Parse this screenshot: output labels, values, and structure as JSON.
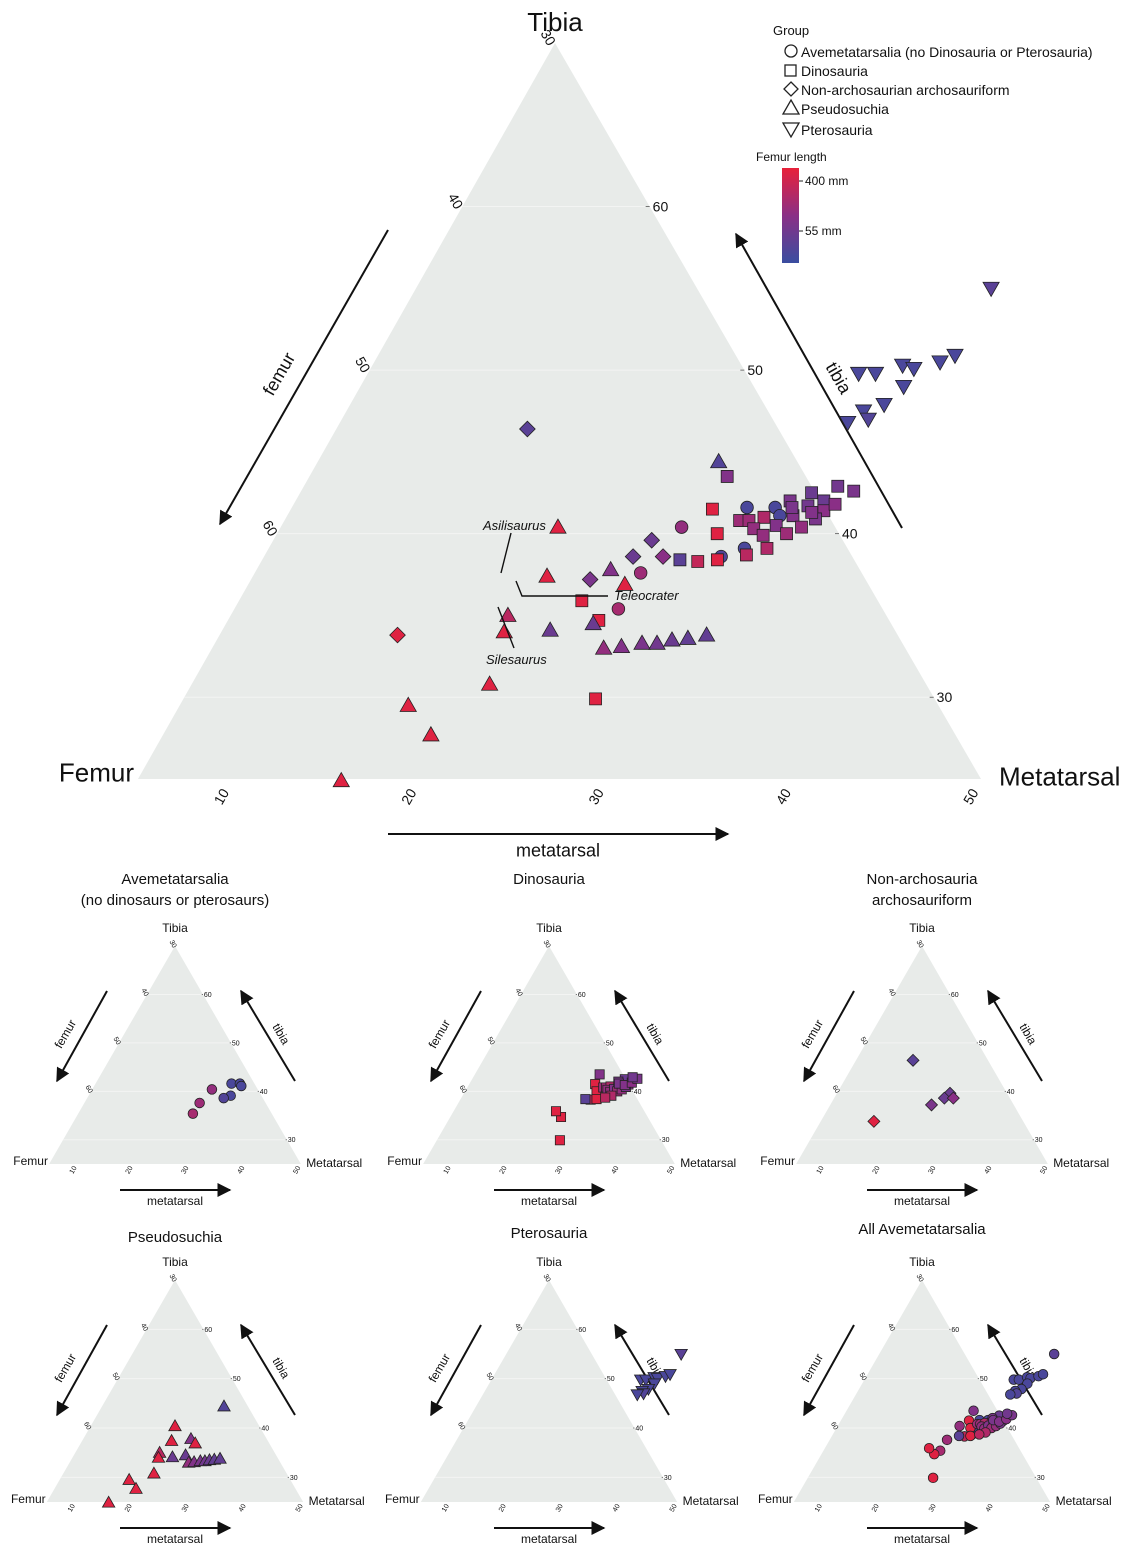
{
  "legend": {
    "group_title": "Group",
    "groups": [
      {
        "label": "Avemetatarsalia (no Dinosauria or Pterosauria)",
        "shape": "circle"
      },
      {
        "label": "Dinosauria",
        "shape": "square"
      },
      {
        "label": "Non-archosaurian archosauriform",
        "shape": "diamond"
      },
      {
        "label": "Pseudosuchia",
        "shape": "triangle-up"
      },
      {
        "label": "Pterosauria",
        "shape": "triangle-down"
      }
    ],
    "color_title": "Femur length",
    "color_max_label": "400 mm",
    "color_min_label": "55 mm",
    "colors": {
      "high": "#e8213a",
      "mid": "#8a2f86",
      "low": "#3a4da0"
    }
  },
  "chart_data": {
    "type": "scatter",
    "subtype": "ternary",
    "vertex_labels": {
      "top": "Tibia",
      "left": "Femur",
      "right": "Metatarsal"
    },
    "axis_labels": {
      "femur": "femur",
      "tibia": "tibia",
      "metatarsal": "metatarsal"
    },
    "metatarsal_ticks": [
      10,
      20,
      30,
      40,
      50
    ],
    "tibia_ticks": [
      30,
      40,
      50,
      60
    ],
    "femur_ticks": [
      30,
      40,
      50,
      60
    ],
    "axis_ranges": {
      "metatarsal": [
        5,
        50
      ],
      "tibia": [
        25,
        70
      ],
      "femur": [
        30,
        75
      ]
    },
    "annotations": [
      "Asilisaurus",
      "Teleocrater",
      "Silesaurus"
    ],
    "points": [
      {
        "g": "avemeta",
        "m": 26.4,
        "t": 40.4,
        "fl": 0.55
      },
      {
        "g": "avemeta",
        "m": 29.3,
        "t": 41.6,
        "fl": 0.1
      },
      {
        "g": "avemeta",
        "m": 30.8,
        "t": 41.6,
        "fl": 0.1
      },
      {
        "g": "avemeta",
        "m": 31.3,
        "t": 41.1,
        "fl": 0.1
      },
      {
        "g": "avemeta",
        "m": 30.4,
        "t": 39.1,
        "fl": 0.1
      },
      {
        "g": "avemeta",
        "m": 29.4,
        "t": 38.6,
        "fl": 0.15
      },
      {
        "g": "avemeta",
        "m": 25.6,
        "t": 37.6,
        "fl": 0.6
      },
      {
        "g": "avemeta",
        "m": 25.5,
        "t": 35.4,
        "fl": 0.65
      },
      {
        "g": "dino",
        "m": 27.3,
        "t": 43.5,
        "fl": 0.45
      },
      {
        "g": "dino",
        "m": 27.5,
        "t": 41.5,
        "fl": 0.95
      },
      {
        "g": "dino",
        "m": 28.3,
        "t": 38.3,
        "fl": 0.8
      },
      {
        "g": "dino",
        "m": 27.3,
        "t": 38.4,
        "fl": 0.2
      },
      {
        "g": "dino",
        "m": 28.5,
        "t": 40.0,
        "fl": 0.95
      },
      {
        "g": "dino",
        "m": 29.3,
        "t": 40.8,
        "fl": 0.6
      },
      {
        "g": "dino",
        "m": 29.8,
        "t": 40.8,
        "fl": 0.6
      },
      {
        "g": "dino",
        "m": 29.3,
        "t": 38.4,
        "fl": 0.95
      },
      {
        "g": "dino",
        "m": 30.5,
        "t": 41.0,
        "fl": 0.7
      },
      {
        "g": "dino",
        "m": 30.3,
        "t": 40.3,
        "fl": 0.55
      },
      {
        "g": "dino",
        "m": 31.0,
        "t": 39.9,
        "fl": 0.55
      },
      {
        "g": "dino",
        "m": 31.4,
        "t": 40.5,
        "fl": 0.45
      },
      {
        "g": "dino",
        "m": 32.0,
        "t": 41.1,
        "fl": 0.45
      },
      {
        "g": "dino",
        "m": 32.5,
        "t": 41.7,
        "fl": 0.35
      },
      {
        "g": "dino",
        "m": 33.2,
        "t": 42.0,
        "fl": 0.3
      },
      {
        "g": "dino",
        "m": 33.5,
        "t": 41.4,
        "fl": 0.5
      },
      {
        "g": "dino",
        "m": 32.2,
        "t": 40.0,
        "fl": 0.6
      },
      {
        "g": "dino",
        "m": 32.8,
        "t": 40.4,
        "fl": 0.55
      },
      {
        "g": "dino",
        "m": 33.3,
        "t": 40.9,
        "fl": 0.4
      },
      {
        "g": "dino",
        "m": 31.6,
        "t": 39.1,
        "fl": 0.7
      },
      {
        "g": "dino",
        "m": 30.7,
        "t": 38.7,
        "fl": 0.75
      },
      {
        "g": "dino",
        "m": 32.3,
        "t": 42.5,
        "fl": 0.3
      },
      {
        "g": "dino",
        "m": 31.4,
        "t": 42.0,
        "fl": 0.4
      },
      {
        "g": "dino",
        "m": 31.7,
        "t": 41.6,
        "fl": 0.4
      },
      {
        "g": "dino",
        "m": 32.9,
        "t": 41.3,
        "fl": 0.45
      },
      {
        "g": "dino",
        "m": 33.9,
        "t": 41.8,
        "fl": 0.5
      },
      {
        "g": "dino",
        "m": 34.5,
        "t": 42.6,
        "fl": 0.4
      },
      {
        "g": "dino",
        "m": 33.5,
        "t": 42.9,
        "fl": 0.35
      },
      {
        "g": "dino",
        "m": 24.8,
        "t": 34.7,
        "fl": 0.95
      },
      {
        "g": "dino",
        "m": 27.0,
        "t": 29.9,
        "fl": 0.95
      },
      {
        "g": "dino",
        "m": 23.3,
        "t": 35.9,
        "fl": 0.95
      },
      {
        "g": "nonarch",
        "m": 15.2,
        "t": 46.4,
        "fl": 0.2
      },
      {
        "g": "nonarch",
        "m": 14.5,
        "t": 33.8,
        "fl": 0.95
      },
      {
        "g": "nonarch",
        "m": 25.2,
        "t": 39.6,
        "fl": 0.3
      },
      {
        "g": "nonarch",
        "m": 24.7,
        "t": 38.6,
        "fl": 0.3
      },
      {
        "g": "nonarch",
        "m": 23.1,
        "t": 37.2,
        "fl": 0.4
      },
      {
        "g": "nonarch",
        "m": 26.3,
        "t": 38.6,
        "fl": 0.5
      },
      {
        "g": "pseudo",
        "m": 26.4,
        "t": 44.4,
        "fl": 0.15
      },
      {
        "g": "pseudo",
        "m": 19.8,
        "t": 40.4,
        "fl": 0.95
      },
      {
        "g": "pseudo",
        "m": 20.7,
        "t": 37.4,
        "fl": 0.95
      },
      {
        "g": "pseudo",
        "m": 19.8,
        "t": 35.0,
        "fl": 0.75
      },
      {
        "g": "pseudo",
        "m": 20.1,
        "t": 34.0,
        "fl": 0.95
      },
      {
        "g": "pseudo",
        "m": 20.9,
        "t": 30.8,
        "fl": 0.95
      },
      {
        "g": "pseudo",
        "m": 17.2,
        "t": 29.5,
        "fl": 0.95
      },
      {
        "g": "pseudo",
        "m": 19.3,
        "t": 27.7,
        "fl": 0.95
      },
      {
        "g": "pseudo",
        "m": 15.9,
        "t": 24.9,
        "fl": 0.95
      },
      {
        "g": "pseudo",
        "m": 22.5,
        "t": 34.1,
        "fl": 0.3
      },
      {
        "g": "pseudo",
        "m": 24.6,
        "t": 34.5,
        "fl": 0.3
      },
      {
        "g": "pseudo",
        "m": 23.9,
        "t": 37.8,
        "fl": 0.45
      },
      {
        "g": "pseudo",
        "m": 25.1,
        "t": 36.9,
        "fl": 0.95
      },
      {
        "g": "pseudo",
        "m": 25.9,
        "t": 33.0,
        "fl": 0.55
      },
      {
        "g": "pseudo",
        "m": 26.8,
        "t": 33.1,
        "fl": 0.45
      },
      {
        "g": "pseudo",
        "m": 27.8,
        "t": 33.3,
        "fl": 0.4
      },
      {
        "g": "pseudo",
        "m": 28.6,
        "t": 33.3,
        "fl": 0.35
      },
      {
        "g": "pseudo",
        "m": 29.3,
        "t": 33.5,
        "fl": 0.3
      },
      {
        "g": "pseudo",
        "m": 30.1,
        "t": 33.6,
        "fl": 0.25
      },
      {
        "g": "pseudo",
        "m": 31.0,
        "t": 33.8,
        "fl": 0.25
      },
      {
        "g": "ptero",
        "m": 35.7,
        "t": 55.0,
        "fl": 0.2
      },
      {
        "g": "ptero",
        "m": 31.2,
        "t": 49.8,
        "fl": 0.1
      },
      {
        "g": "ptero",
        "m": 32.1,
        "t": 49.8,
        "fl": 0.1
      },
      {
        "g": "ptero",
        "m": 33.3,
        "t": 50.3,
        "fl": 0.1
      },
      {
        "g": "ptero",
        "m": 34.0,
        "t": 50.1,
        "fl": 0.1
      },
      {
        "g": "ptero",
        "m": 35.2,
        "t": 50.5,
        "fl": 0.1
      },
      {
        "g": "ptero",
        "m": 35.8,
        "t": 50.9,
        "fl": 0.1
      },
      {
        "g": "ptero",
        "m": 34.0,
        "t": 49.0,
        "fl": 0.1
      },
      {
        "g": "ptero",
        "m": 33.5,
        "t": 47.9,
        "fl": 0.1
      },
      {
        "g": "ptero",
        "m": 32.6,
        "t": 47.5,
        "fl": 0.1
      },
      {
        "g": "ptero",
        "m": 33.1,
        "t": 47.0,
        "fl": 0.15
      },
      {
        "g": "ptero",
        "m": 32.1,
        "t": 46.8,
        "fl": 0.1
      }
    ]
  },
  "small_panels": [
    {
      "title_lines": [
        "Avemetatarsalia",
        "(no dinosaurs or pterosaurs)"
      ],
      "groups": [
        "avemeta"
      ],
      "labels": {
        "top": "Tibia",
        "left": "Femur",
        "right": "Metatarsal",
        "femur": "femur",
        "tibia": "tibia",
        "metatarsal": "metatarsal"
      }
    },
    {
      "title_lines": [
        "Dinosauria"
      ],
      "groups": [
        "dino"
      ],
      "labels": {
        "top": "Tibia",
        "left": "Femur",
        "right": "Metatarsal",
        "femur": "femur",
        "tibia": "tibia",
        "metatarsal": "metatarsal"
      }
    },
    {
      "title_lines": [
        "Non-archosauria",
        "archosauriform"
      ],
      "groups": [
        "nonarch"
      ],
      "labels": {
        "top": "Tibia",
        "left": "Femur",
        "right": "Metatarsal",
        "femur": "femur",
        "tibia": "tibia",
        "metatarsal": "metatarsal"
      }
    },
    {
      "title_lines": [
        "Pseudosuchia"
      ],
      "groups": [
        "pseudo"
      ],
      "labels": {
        "top": "Tibia",
        "left": "Femur",
        "right": "Metatarsal",
        "femur": "femur",
        "tibia": "tibia",
        "metatarsal": "metatarsal"
      }
    },
    {
      "title_lines": [
        "Pterosauria"
      ],
      "groups": [
        "ptero"
      ],
      "labels": {
        "top": "Tibia",
        "left": "Femur",
        "right": "Metatarsal",
        "femur": "femur",
        "tibia": "tibia",
        "metatarsal": "metatarsal"
      }
    },
    {
      "title_lines": [
        "All Avemetatarsalia"
      ],
      "groups": [
        "avemeta",
        "dino",
        "ptero"
      ],
      "marker_override": "circle",
      "labels": {
        "top": "Tibia",
        "left": "Femur",
        "right": "Metatarsal",
        "femur": "femur",
        "tibia": "tibia",
        "metatarsal": "metatarsal"
      }
    }
  ]
}
